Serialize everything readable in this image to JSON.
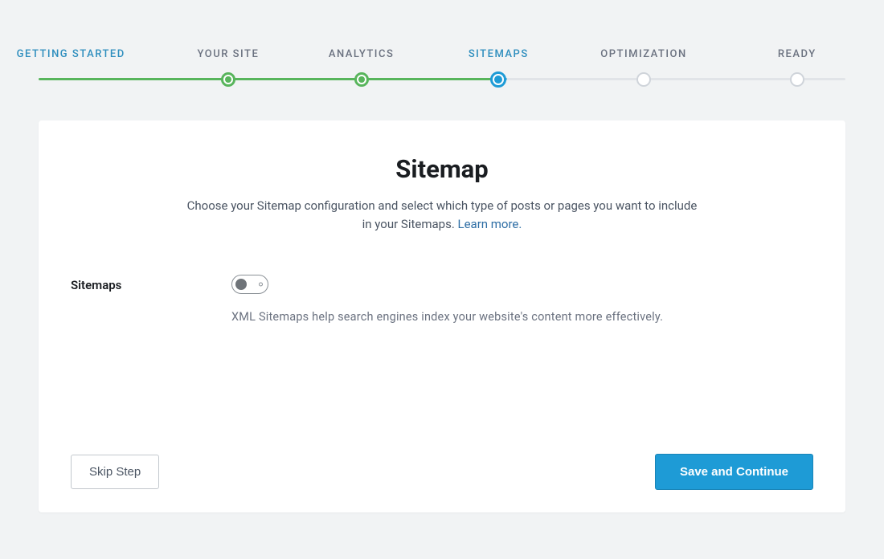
{
  "colors": {
    "page_bg": "#f1f3f4",
    "card_bg": "#ffffff",
    "text_primary": "#1a1d21",
    "text_muted": "#6b7280",
    "step_done": "#58b55c",
    "step_current": "#1e9bd6",
    "step_inactive": "#cfd4da",
    "link": "#2e6ea5",
    "btn_primary_bg": "#1e9bd6",
    "btn_primary_border": "#1984b7",
    "btn_secondary_border": "#c3c8cd",
    "toggle_border": "#8a9096",
    "toggle_knob": "#6f7479"
  },
  "stepper": {
    "steps": [
      {
        "label": "GETTING STARTED",
        "state": "start",
        "pct": 4,
        "node": false
      },
      {
        "label": "YOUR SITE",
        "state": "done",
        "pct": 23.5,
        "node": true
      },
      {
        "label": "ANALYTICS",
        "state": "done",
        "pct": 40,
        "node": true
      },
      {
        "label": "SITEMAPS",
        "state": "current",
        "pct": 57,
        "node": true
      },
      {
        "label": "OPTIMIZATION",
        "state": "future",
        "pct": 75,
        "node": true
      },
      {
        "label": "READY",
        "state": "future",
        "pct": 94,
        "node": true
      }
    ],
    "bar_gradient_stops": {
      "green_end_pct": 56.5,
      "blue_end_pct": 58,
      "gray_to_pct": 100
    }
  },
  "card": {
    "title": "Sitemap",
    "description_pre": "Choose your Sitemap configuration and select which type of posts or pages you want to include in your Sitemaps. ",
    "learn_more": "Learn more.",
    "setting": {
      "label": "Sitemaps",
      "toggle_state": "off",
      "help": "XML Sitemaps help search engines index your website's content more effectively."
    }
  },
  "footer": {
    "skip": "Skip Step",
    "continue": "Save and Continue"
  }
}
